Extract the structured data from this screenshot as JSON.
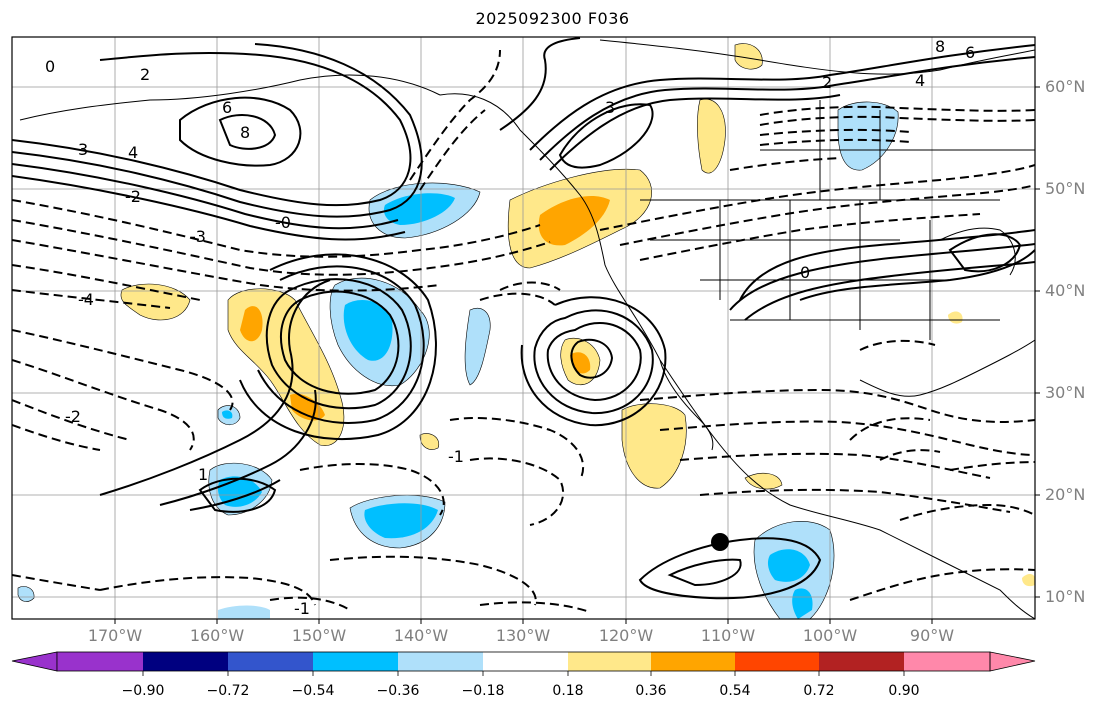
{
  "title": "2025092300 F036",
  "lon_labels": [
    "170°W",
    "160°W",
    "150°W",
    "140°W",
    "130°W",
    "120°W",
    "110°W",
    "100°W",
    "90°W"
  ],
  "lat_labels": [
    "60°N",
    "50°N",
    "40°N",
    "30°N",
    "20°N",
    "10°N"
  ],
  "colorbar": {
    "labels": [
      "−0.90",
      "−0.72",
      "−0.54",
      "−0.36",
      "−0.18",
      "0.18",
      "0.36",
      "0.54",
      "0.72",
      "0.90"
    ],
    "colors": [
      "#9932cc",
      "#000080",
      "#3355cc",
      "#00bfff",
      "#afe0fa",
      "#ffffff",
      "#ffe88a",
      "#ffa500",
      "#ff4500",
      "#b22222",
      "#ff88aa"
    ]
  },
  "contour_labels": [
    "0",
    "2",
    "3",
    "4",
    "6",
    "8",
    "-0",
    "-2",
    "-3",
    "-4",
    "1",
    "-1",
    "3",
    "2",
    "0",
    "-1",
    "-2",
    "4",
    "6",
    "8"
  ],
  "marker": "storm-center"
}
